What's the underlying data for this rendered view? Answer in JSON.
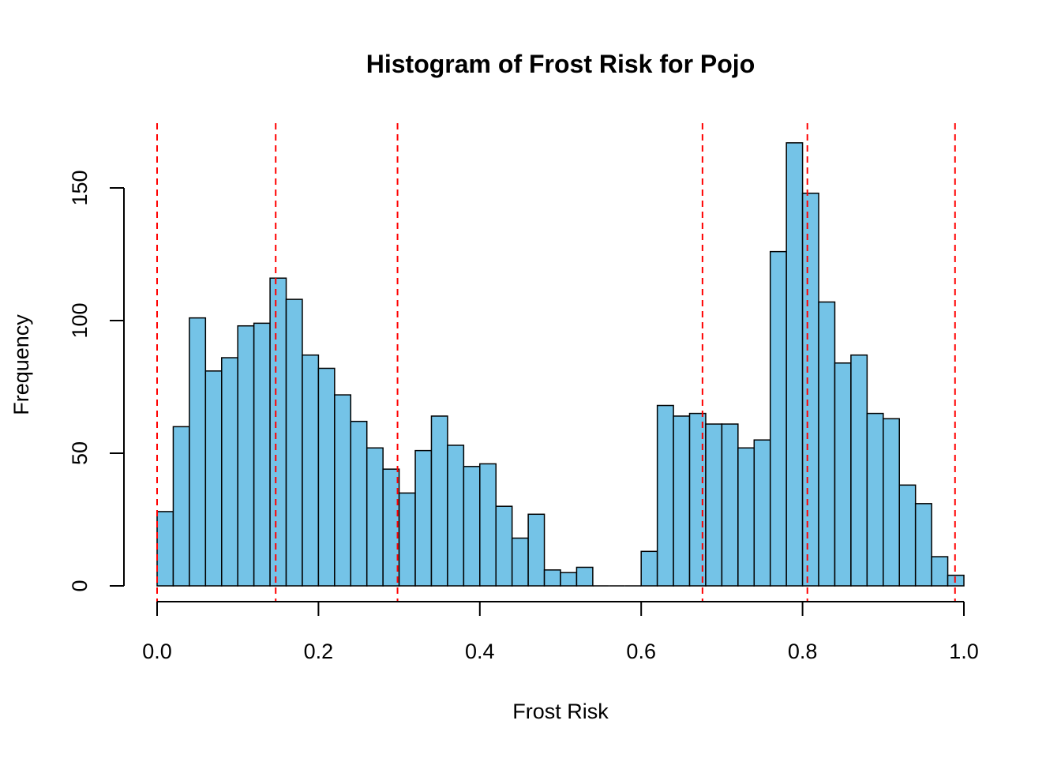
{
  "chart_data": {
    "type": "bar",
    "title": "Histogram of Frost Risk for Pojo",
    "xlabel": "Frost Risk",
    "ylabel": "Frequency",
    "xlim": [
      0,
      1
    ],
    "ylim": [
      0,
      170
    ],
    "bin_width": 0.02,
    "bin_starts": [
      0.0,
      0.02,
      0.04,
      0.06,
      0.08,
      0.1,
      0.12,
      0.14,
      0.16,
      0.18,
      0.2,
      0.22,
      0.24,
      0.26,
      0.28,
      0.3,
      0.32,
      0.34,
      0.36,
      0.38,
      0.4,
      0.42,
      0.44,
      0.46,
      0.48,
      0.5,
      0.52,
      0.54,
      0.56,
      0.58,
      0.6,
      0.62,
      0.64,
      0.66,
      0.68,
      0.7,
      0.72,
      0.74,
      0.76,
      0.78,
      0.8,
      0.82,
      0.84,
      0.86,
      0.88,
      0.9,
      0.92,
      0.94,
      0.96,
      0.98
    ],
    "values": [
      28,
      60,
      101,
      81,
      86,
      98,
      99,
      116,
      108,
      87,
      82,
      72,
      62,
      52,
      44,
      35,
      51,
      64,
      53,
      45,
      46,
      30,
      18,
      27,
      6,
      5,
      7,
      0,
      0,
      0,
      13,
      68,
      64,
      65,
      61,
      61,
      52,
      55,
      126,
      167,
      148,
      107,
      84,
      87,
      65,
      63,
      38,
      31,
      11,
      4
    ],
    "x_ticks": [
      "0.0",
      "0.2",
      "0.4",
      "0.6",
      "0.8",
      "1.0"
    ],
    "x_tick_values": [
      0,
      0.2,
      0.4,
      0.6,
      0.8,
      1.0
    ],
    "y_ticks": [
      "0",
      "50",
      "100",
      "150"
    ],
    "y_tick_values": [
      0,
      50,
      100,
      150
    ],
    "reference_lines": [
      0.0,
      0.147,
      0.298,
      0.676,
      0.806,
      0.989
    ],
    "bar_color": "#74C3E7",
    "bar_edge_color": "#000000",
    "reference_line_color": "#FF0000",
    "grid": false,
    "legend": "none"
  }
}
